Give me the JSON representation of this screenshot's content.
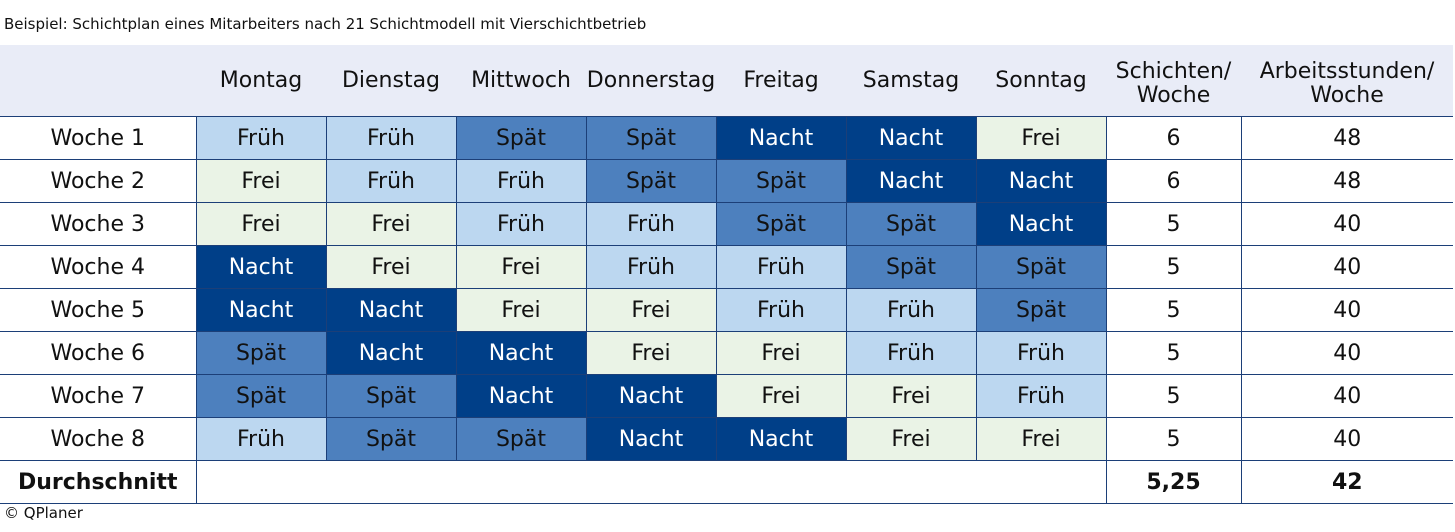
{
  "caption": "Beispiel: Schichtplan eines Mitarbeiters nach 21 Schichtmodell mit Vierschichtbetrieb",
  "copyright": "© QPlaner",
  "colors": {
    "Früh": "#bcd7f0",
    "Spät": "#4d80be",
    "Nacht": "#003f88",
    "Frei": "#eaf3e6",
    "header_background": "#e9ecf7",
    "grid": "#1c3f78"
  },
  "table": {
    "headers": {
      "days": [
        "Montag",
        "Dienstag",
        "Mittwoch",
        "Donnerstag",
        "Freitag",
        "Samstag",
        "Sonntag"
      ],
      "shifts_line1": "Schichten/",
      "shifts_line2": "Woche",
      "hours_line1": "Arbeitsstunden/",
      "hours_line2": "Woche"
    },
    "rows": [
      {
        "label": "Woche 1",
        "days": [
          "Früh",
          "Früh",
          "Spät",
          "Spät",
          "Nacht",
          "Nacht",
          "Frei"
        ],
        "shifts": "6",
        "hours": "48"
      },
      {
        "label": "Woche 2",
        "days": [
          "Frei",
          "Früh",
          "Früh",
          "Spät",
          "Spät",
          "Nacht",
          "Nacht"
        ],
        "shifts": "6",
        "hours": "48"
      },
      {
        "label": "Woche 3",
        "days": [
          "Frei",
          "Frei",
          "Früh",
          "Früh",
          "Spät",
          "Spät",
          "Nacht"
        ],
        "shifts": "5",
        "hours": "40"
      },
      {
        "label": "Woche 4",
        "days": [
          "Nacht",
          "Frei",
          "Frei",
          "Früh",
          "Früh",
          "Spät",
          "Spät"
        ],
        "shifts": "5",
        "hours": "40"
      },
      {
        "label": "Woche 5",
        "days": [
          "Nacht",
          "Nacht",
          "Frei",
          "Frei",
          "Früh",
          "Früh",
          "Spät"
        ],
        "shifts": "5",
        "hours": "40"
      },
      {
        "label": "Woche 6",
        "days": [
          "Spät",
          "Nacht",
          "Nacht",
          "Frei",
          "Frei",
          "Früh",
          "Früh"
        ],
        "shifts": "5",
        "hours": "40"
      },
      {
        "label": "Woche 7",
        "days": [
          "Spät",
          "Spät",
          "Nacht",
          "Nacht",
          "Frei",
          "Frei",
          "Früh"
        ],
        "shifts": "5",
        "hours": "40"
      },
      {
        "label": "Woche 8",
        "days": [
          "Früh",
          "Spät",
          "Spät",
          "Nacht",
          "Nacht",
          "Frei",
          "Frei"
        ],
        "shifts": "5",
        "hours": "40"
      }
    ],
    "average": {
      "label": "Durchschnitt",
      "shifts": "5,25",
      "hours": "42"
    }
  }
}
